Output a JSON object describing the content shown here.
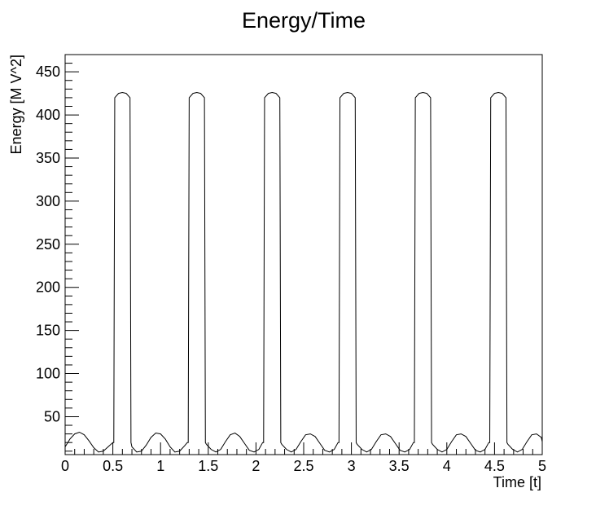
{
  "chart_data": {
    "type": "line",
    "title": "Energy/Time",
    "xlabel": "Time [t]",
    "ylabel": "Energy [M V^2]",
    "xlim": [
      0,
      5
    ],
    "ylim": [
      6,
      470
    ],
    "x_ticks": [
      "0",
      "0.5",
      "1",
      "1.5",
      "2",
      "2.5",
      "3",
      "3.5",
      "4",
      "4.5",
      "5"
    ],
    "y_ticks": [
      "50",
      "100",
      "150",
      "200",
      "250",
      "300",
      "350",
      "400",
      "450"
    ],
    "grid": false,
    "series": [
      {
        "x": [
          0,
          0.05,
          0.1,
          0.15,
          0.2,
          0.25,
          0.3,
          0.35,
          0.4,
          0.45,
          0.5,
          0.51,
          0.52,
          0.56,
          0.6,
          0.64,
          0.68,
          0.69,
          0.7,
          0.75,
          0.8,
          0.85,
          0.9,
          0.95,
          1.0,
          1.05,
          1.1,
          1.15,
          1.2,
          1.25,
          1.28,
          1.29,
          1.3,
          1.34,
          1.38,
          1.42,
          1.46,
          1.47,
          1.48,
          1.53,
          1.58,
          1.63,
          1.68,
          1.73,
          1.78,
          1.83,
          1.88,
          1.93,
          1.98,
          2.03,
          2.07,
          2.08,
          2.09,
          2.13,
          2.17,
          2.21,
          2.25,
          2.26,
          2.27,
          2.32,
          2.37,
          2.42,
          2.47,
          2.52,
          2.57,
          2.62,
          2.67,
          2.72,
          2.77,
          2.82,
          2.86,
          2.87,
          2.88,
          2.92,
          2.96,
          3.0,
          3.04,
          3.05,
          3.06,
          3.11,
          3.16,
          3.21,
          3.26,
          3.31,
          3.36,
          3.41,
          3.46,
          3.51,
          3.56,
          3.61,
          3.65,
          3.66,
          3.67,
          3.71,
          3.75,
          3.79,
          3.83,
          3.84,
          3.85,
          3.9,
          3.95,
          4.0,
          4.05,
          4.1,
          4.15,
          4.2,
          4.25,
          4.3,
          4.35,
          4.4,
          4.44,
          4.45,
          4.46,
          4.5,
          4.54,
          4.58,
          4.62,
          4.63,
          4.64,
          4.69,
          4.74,
          4.79,
          4.84,
          4.89,
          4.94,
          4.99,
          5.0
        ],
        "y": [
          15,
          24,
          30,
          32,
          29,
          22,
          14,
          9,
          10,
          15,
          20,
          20,
          420,
          425,
          426,
          425,
          420,
          20,
          15,
          9,
          10,
          17,
          26,
          31,
          30,
          24,
          15,
          9,
          10,
          16,
          20,
          20,
          420,
          425,
          426,
          425,
          420,
          20,
          18,
          12,
          9,
          12,
          21,
          29,
          31,
          27,
          19,
          11,
          9,
          12,
          20,
          20,
          420,
          425,
          426,
          425,
          420,
          20,
          18,
          12,
          9,
          12,
          21,
          29,
          30,
          27,
          19,
          11,
          9,
          12,
          20,
          20,
          420,
          425,
          426,
          425,
          420,
          20,
          18,
          12,
          9,
          12,
          21,
          29,
          30,
          27,
          19,
          11,
          9,
          12,
          20,
          20,
          420,
          425,
          426,
          425,
          420,
          20,
          18,
          12,
          9,
          12,
          21,
          29,
          30,
          27,
          19,
          11,
          9,
          12,
          20,
          20,
          420,
          425,
          426,
          425,
          420,
          20,
          18,
          12,
          9,
          12,
          21,
          29,
          30,
          26,
          21
        ]
      }
    ]
  }
}
